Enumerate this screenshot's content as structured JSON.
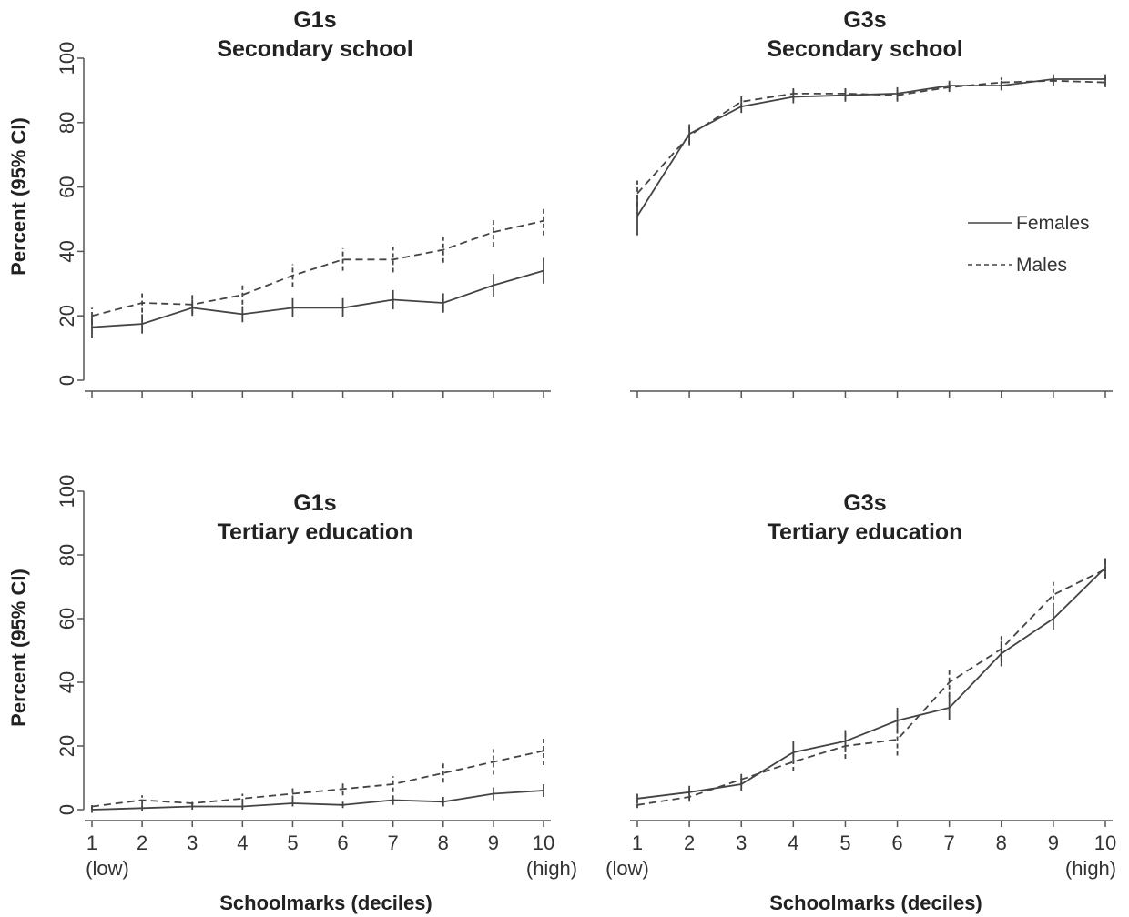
{
  "chart_data": [
    {
      "type": "line",
      "title": "G1s",
      "subtitle": "Secondary school",
      "ylabel": "Percent  (95% CI)",
      "xlabel": "",
      "x": [
        1,
        2,
        3,
        4,
        5,
        6,
        7,
        8,
        9,
        10
      ],
      "ylim": [
        0,
        100
      ],
      "yticks": [
        "0",
        "20",
        "40",
        "60",
        "80",
        "100"
      ],
      "xticks": [],
      "series": [
        {
          "name": "Females",
          "style": "solid",
          "values": [
            16.5,
            17.5,
            22.5,
            20.5,
            22.5,
            22.5,
            25,
            24,
            29.5,
            34
          ],
          "ci": [
            3.5,
            3,
            2.5,
            2.5,
            3,
            3,
            3,
            3,
            3.5,
            4
          ]
        },
        {
          "name": "Males",
          "style": "dashed",
          "values": [
            20,
            24,
            23.5,
            26.5,
            32.5,
            37.5,
            37.5,
            40.5,
            46,
            49.5
          ],
          "ci": [
            2.5,
            3,
            3,
            3,
            3.5,
            3.5,
            4,
            4,
            4.5,
            4.5
          ]
        }
      ]
    },
    {
      "type": "line",
      "title": "G3s",
      "subtitle": "Secondary school",
      "ylabel": "",
      "xlabel": "",
      "x": [
        1,
        2,
        3,
        4,
        5,
        6,
        7,
        8,
        9,
        10
      ],
      "ylim": [
        0,
        100
      ],
      "yticks": [],
      "xticks": [],
      "legend": {
        "position": "right",
        "entries": [
          "Females",
          "Males"
        ]
      },
      "series": [
        {
          "name": "Females",
          "style": "solid",
          "values": [
            51,
            76.5,
            85,
            88,
            88.5,
            89,
            91.5,
            91.5,
            93.5,
            93.5
          ],
          "ci": [
            6,
            3,
            2,
            2,
            2,
            2,
            1.5,
            1.5,
            1.5,
            1.5
          ]
        },
        {
          "name": "Males",
          "style": "dashed",
          "values": [
            58,
            76,
            86.5,
            89,
            89,
            88.5,
            91,
            92.5,
            93,
            92.5
          ],
          "ci": [
            4,
            3,
            2,
            2,
            2,
            2,
            1.5,
            1.5,
            1.5,
            1.5
          ]
        }
      ]
    },
    {
      "type": "line",
      "title": "G1s",
      "subtitle": "Tertiary education",
      "ylabel": "Percent (95% CI)",
      "xlabel": "Schoolmarks (deciles)",
      "x": [
        1,
        2,
        3,
        4,
        5,
        6,
        7,
        8,
        9,
        10
      ],
      "ylim": [
        0,
        100
      ],
      "yticks": [
        "0",
        "20",
        "40",
        "60",
        "80",
        "100"
      ],
      "xticks": [
        "1",
        "2",
        "3",
        "4",
        "5",
        "6",
        "7",
        "8",
        "9",
        "10"
      ],
      "xtick_notes": {
        "low": "(low)",
        "high": "(high)"
      },
      "series": [
        {
          "name": "Females",
          "style": "solid",
          "values": [
            0,
            0.5,
            1,
            1,
            2,
            1.5,
            3,
            2.5,
            5,
            6
          ],
          "ci": [
            1,
            1,
            1,
            1,
            1,
            1,
            1.5,
            1.5,
            2,
            2
          ]
        },
        {
          "name": "Males",
          "style": "dashed",
          "values": [
            1,
            3,
            2,
            3.5,
            5,
            6.5,
            8,
            11.5,
            15,
            18.5
          ],
          "ci": [
            1,
            1.5,
            1,
            1.5,
            2,
            2,
            2.5,
            3,
            4,
            4.5
          ]
        }
      ]
    },
    {
      "type": "line",
      "title": "G3s",
      "subtitle": "Tertiary education",
      "ylabel": "",
      "xlabel": "Schoolmarks (deciles)",
      "x": [
        1,
        2,
        3,
        4,
        5,
        6,
        7,
        8,
        9,
        10
      ],
      "ylim": [
        0,
        100
      ],
      "yticks": [],
      "xticks": [
        "1",
        "2",
        "3",
        "4",
        "5",
        "6",
        "7",
        "8",
        "9",
        "10"
      ],
      "xtick_notes": {
        "low": "(low)",
        "high": "(high)"
      },
      "series": [
        {
          "name": "Females",
          "style": "solid",
          "values": [
            3.5,
            5.5,
            8,
            18,
            21.5,
            28,
            32,
            49,
            60,
            76
          ],
          "ci": [
            1.5,
            2,
            2,
            3.5,
            3.5,
            4,
            4,
            4,
            3.5,
            3
          ]
        },
        {
          "name": "Males",
          "style": "dashed",
          "values": [
            1.5,
            4,
            9.5,
            15,
            20,
            22,
            40,
            50.5,
            67.5,
            75.5
          ],
          "ci": [
            1,
            1.5,
            2,
            3,
            4,
            5,
            4.5,
            4,
            4,
            3
          ]
        }
      ]
    }
  ],
  "colors": {
    "line": "#444444",
    "axis": "#555555",
    "text": "#222222"
  }
}
